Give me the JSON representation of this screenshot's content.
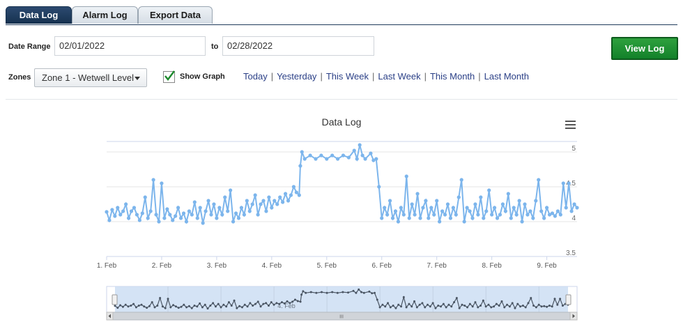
{
  "tabs": [
    {
      "label": "Data Log",
      "active": true
    },
    {
      "label": "Alarm Log",
      "active": false
    },
    {
      "label": "Export Data",
      "active": false
    }
  ],
  "form": {
    "date_range_label": "Date Range",
    "start_date": "02/01/2022",
    "to_label": "to",
    "end_date": "02/28/2022",
    "view_button": "View Log",
    "zones_label": "Zones",
    "zone_selected": "Zone 1 - Wetwell Level",
    "show_graph_label": "Show Graph",
    "show_graph_checked": true,
    "quick_links": [
      "Today",
      "Yesterday",
      "This Week",
      "Last Week",
      "This Month",
      "Last Month"
    ]
  },
  "chart": {
    "menu_icon": "hamburger-icon",
    "scrollbar_grip": "III"
  },
  "colors": {
    "series": "#7cb5ec",
    "navigator_series": "#4a5563",
    "tab_active": "#1f3a5a",
    "view_button": "#1d8f33",
    "link": "#2a3f86"
  },
  "chart_data": {
    "type": "line",
    "title": "Data Log",
    "xlabel": "",
    "ylabel": "",
    "x_ticks": [
      "1. Feb",
      "2. Feb",
      "3. Feb",
      "4. Feb",
      "5. Feb",
      "6. Feb",
      "7. Feb",
      "8. Feb",
      "9. Feb"
    ],
    "y_ticks": [
      "3.5",
      "4",
      "4.5",
      "5"
    ],
    "ylim": [
      3.5,
      5.15
    ],
    "xlim_days": [
      1.0,
      9.55
    ],
    "navigator_x_label": "4. Feb",
    "series": [
      {
        "values": [
          [
            1.0,
            4.14
          ],
          [
            1.05,
            4.02
          ],
          [
            1.1,
            4.17
          ],
          [
            1.15,
            4.08
          ],
          [
            1.2,
            4.2
          ],
          [
            1.25,
            4.1
          ],
          [
            1.3,
            4.15
          ],
          [
            1.35,
            4.25
          ],
          [
            1.4,
            4.05
          ],
          [
            1.45,
            4.15
          ],
          [
            1.5,
            4.2
          ],
          [
            1.55,
            4.1
          ],
          [
            1.6,
            4.02
          ],
          [
            1.65,
            4.12
          ],
          [
            1.7,
            4.35
          ],
          [
            1.75,
            4.05
          ],
          [
            1.8,
            4.15
          ],
          [
            1.85,
            4.6
          ],
          [
            1.9,
            4.1
          ],
          [
            1.95,
            4.0
          ],
          [
            2.0,
            4.55
          ],
          [
            2.05,
            4.05
          ],
          [
            2.1,
            4.18
          ],
          [
            2.15,
            4.1
          ],
          [
            2.2,
            4.02
          ],
          [
            2.25,
            4.08
          ],
          [
            2.3,
            4.2
          ],
          [
            2.35,
            4.05
          ],
          [
            2.4,
            4.12
          ],
          [
            2.45,
            4.0
          ],
          [
            2.5,
            4.15
          ],
          [
            2.55,
            4.1
          ],
          [
            2.6,
            4.28
          ],
          [
            2.65,
            4.05
          ],
          [
            2.7,
            4.2
          ],
          [
            2.75,
            3.98
          ],
          [
            2.8,
            4.15
          ],
          [
            2.85,
            4.3
          ],
          [
            2.9,
            4.1
          ],
          [
            2.95,
            4.25
          ],
          [
            3.0,
            4.05
          ],
          [
            3.05,
            4.2
          ],
          [
            3.1,
            4.1
          ],
          [
            3.15,
            4.35
          ],
          [
            3.2,
            4.15
          ],
          [
            3.25,
            4.45
          ],
          [
            3.3,
            4.0
          ],
          [
            3.35,
            4.12
          ],
          [
            3.4,
            4.05
          ],
          [
            3.45,
            4.2
          ],
          [
            3.5,
            4.1
          ],
          [
            3.55,
            4.3
          ],
          [
            3.6,
            4.15
          ],
          [
            3.65,
            4.25
          ],
          [
            3.7,
            4.38
          ],
          [
            3.75,
            4.1
          ],
          [
            3.8,
            4.25
          ],
          [
            3.85,
            4.3
          ],
          [
            3.9,
            4.15
          ],
          [
            3.95,
            4.35
          ],
          [
            4.0,
            4.2
          ],
          [
            4.05,
            4.3
          ],
          [
            4.1,
            4.25
          ],
          [
            4.15,
            4.35
          ],
          [
            4.2,
            4.28
          ],
          [
            4.25,
            4.4
          ],
          [
            4.3,
            4.3
          ],
          [
            4.35,
            4.38
          ],
          [
            4.4,
            4.5
          ],
          [
            4.45,
            4.42
          ],
          [
            4.5,
            4.38
          ],
          [
            4.52,
            4.8
          ],
          [
            4.55,
            5.0
          ],
          [
            4.6,
            4.9
          ],
          [
            4.7,
            4.95
          ],
          [
            4.8,
            4.9
          ],
          [
            4.9,
            4.95
          ],
          [
            5.0,
            4.9
          ],
          [
            5.1,
            4.95
          ],
          [
            5.2,
            4.9
          ],
          [
            5.3,
            4.95
          ],
          [
            5.4,
            4.92
          ],
          [
            5.5,
            5.02
          ],
          [
            5.55,
            4.9
          ],
          [
            5.6,
            5.1
          ],
          [
            5.65,
            4.95
          ],
          [
            5.7,
            4.9
          ],
          [
            5.8,
            4.98
          ],
          [
            5.85,
            4.88
          ],
          [
            5.9,
            4.9
          ],
          [
            5.95,
            4.5
          ],
          [
            6.0,
            4.05
          ],
          [
            6.05,
            4.2
          ],
          [
            6.1,
            4.1
          ],
          [
            6.15,
            4.3
          ],
          [
            6.2,
            4.05
          ],
          [
            6.25,
            4.15
          ],
          [
            6.3,
            4.0
          ],
          [
            6.35,
            4.2
          ],
          [
            6.4,
            4.1
          ],
          [
            6.45,
            4.65
          ],
          [
            6.5,
            4.05
          ],
          [
            6.55,
            4.25
          ],
          [
            6.6,
            4.1
          ],
          [
            6.65,
            4.4
          ],
          [
            6.7,
            4.05
          ],
          [
            6.75,
            4.2
          ],
          [
            6.8,
            4.3
          ],
          [
            6.85,
            4.05
          ],
          [
            6.9,
            4.2
          ],
          [
            6.95,
            4.1
          ],
          [
            7.0,
            4.3
          ],
          [
            7.05,
            4.0
          ],
          [
            7.1,
            4.15
          ],
          [
            7.15,
            4.1
          ],
          [
            7.2,
            4.25
          ],
          [
            7.25,
            4.05
          ],
          [
            7.3,
            4.2
          ],
          [
            7.35,
            4.1
          ],
          [
            7.4,
            4.35
          ],
          [
            7.45,
            4.6
          ],
          [
            7.5,
            4.0
          ],
          [
            7.55,
            4.2
          ],
          [
            7.6,
            4.15
          ],
          [
            7.65,
            4.05
          ],
          [
            7.7,
            4.25
          ],
          [
            7.75,
            4.1
          ],
          [
            7.8,
            4.35
          ],
          [
            7.85,
            4.05
          ],
          [
            7.9,
            4.15
          ],
          [
            7.95,
            4.45
          ],
          [
            8.0,
            4.1
          ],
          [
            8.05,
            4.2
          ],
          [
            8.1,
            4.05
          ],
          [
            8.15,
            4.1
          ],
          [
            8.2,
            4.25
          ],
          [
            8.25,
            4.15
          ],
          [
            8.3,
            4.4
          ],
          [
            8.35,
            4.05
          ],
          [
            8.4,
            4.2
          ],
          [
            8.45,
            4.1
          ],
          [
            8.5,
            4.3
          ],
          [
            8.55,
            4.0
          ],
          [
            8.6,
            4.25
          ],
          [
            8.65,
            4.1
          ],
          [
            8.7,
            4.15
          ],
          [
            8.75,
            4.05
          ],
          [
            8.8,
            4.3
          ],
          [
            8.85,
            4.6
          ],
          [
            8.9,
            4.15
          ],
          [
            8.95,
            4.05
          ],
          [
            9.0,
            4.2
          ],
          [
            9.05,
            4.1
          ],
          [
            9.1,
            4.12
          ],
          [
            9.15,
            4.08
          ],
          [
            9.2,
            4.15
          ],
          [
            9.25,
            4.1
          ],
          [
            9.3,
            4.55
          ],
          [
            9.35,
            4.2
          ],
          [
            9.4,
            4.55
          ],
          [
            9.45,
            4.15
          ],
          [
            9.5,
            4.25
          ],
          [
            9.55,
            4.2
          ]
        ]
      }
    ]
  }
}
